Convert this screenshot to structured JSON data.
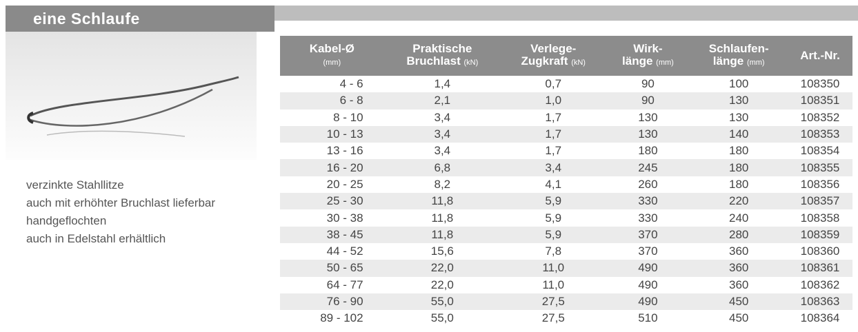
{
  "header": {
    "title": "eine Schlaufe"
  },
  "features": [
    "verzinkte Stahllitze",
    "auch mit erhöhter Bruchlast lieferbar",
    "handgeflochten",
    "auch in Edelstahl erhältlich"
  ],
  "table": {
    "columns": [
      {
        "line1": "Kabel-Ø",
        "unit": "(mm)"
      },
      {
        "line1": "Praktische",
        "line2": "Bruchlast",
        "unit": "(kN)"
      },
      {
        "line1": "Verlege-",
        "line2": "Zugkraft",
        "unit": "(kN)"
      },
      {
        "line1": "Wirk-",
        "line2": "länge",
        "unit": "(mm)"
      },
      {
        "line1": "Schlaufen-",
        "line2": "länge",
        "unit": "(mm)"
      },
      {
        "line1": "Art.-Nr."
      }
    ],
    "rows": [
      [
        "4 - 6",
        "1,4",
        "0,7",
        "90",
        "100",
        "108350"
      ],
      [
        "6 - 8",
        "2,1",
        "1,0",
        "90",
        "130",
        "108351"
      ],
      [
        "8 - 10",
        "3,4",
        "1,7",
        "130",
        "130",
        "108352"
      ],
      [
        "10 - 13",
        "3,4",
        "1,7",
        "130",
        "140",
        "108353"
      ],
      [
        "13 - 16",
        "3,4",
        "1,7",
        "180",
        "180",
        "108354"
      ],
      [
        "16 - 20",
        "6,8",
        "3,4",
        "245",
        "180",
        "108355"
      ],
      [
        "20 - 25",
        "8,2",
        "4,1",
        "260",
        "180",
        "108356"
      ],
      [
        "25 - 30",
        "11,8",
        "5,9",
        "330",
        "220",
        "108357"
      ],
      [
        "30 - 38",
        "11,8",
        "5,9",
        "330",
        "240",
        "108358"
      ],
      [
        "38 - 45",
        "11,8",
        "5,9",
        "370",
        "280",
        "108359"
      ],
      [
        "44 - 52",
        "15,6",
        "7,8",
        "370",
        "360",
        "108360"
      ],
      [
        "50 - 65",
        "22,0",
        "11,0",
        "490",
        "360",
        "108361"
      ],
      [
        "64 - 77",
        "22,0",
        "11,0",
        "490",
        "360",
        "108362"
      ],
      [
        "76 - 90",
        "55,0",
        "27,5",
        "490",
        "450",
        "108363"
      ],
      [
        "89 - 102",
        "55,0",
        "27,5",
        "510",
        "450",
        "108364"
      ]
    ]
  }
}
